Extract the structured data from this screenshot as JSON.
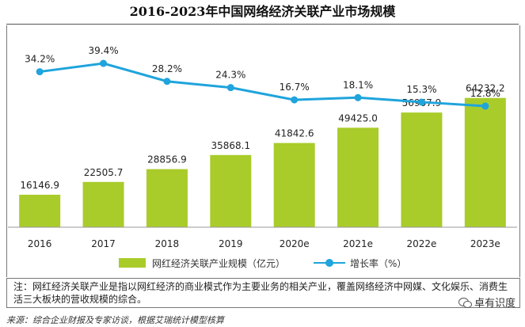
{
  "title": "2016-2023年中国网络经济关联产业市场规模",
  "chart_data": {
    "type": "bar+line",
    "categories": [
      "2016",
      "2017",
      "2018",
      "2019",
      "2020e",
      "2021e",
      "2022e",
      "2023e"
    ],
    "series": [
      {
        "name": "网红经济关联产业规模（亿元）",
        "type": "bar",
        "values": [
          16146.9,
          22505.7,
          28856.9,
          35868.1,
          41842.6,
          49425.0,
          56967.9,
          64232.2
        ],
        "labels": [
          "16146.9",
          "22505.7",
          "28856.9",
          "35868.1",
          "41842.6",
          "49425.0",
          "56967.9",
          "64232.2"
        ],
        "color": "#a9cc2a"
      },
      {
        "name": "增长率（%）",
        "type": "line",
        "values": [
          34.2,
          39.4,
          28.2,
          24.3,
          16.7,
          18.1,
          15.3,
          12.8
        ],
        "labels": [
          "34.2%",
          "39.4%",
          "28.2%",
          "24.3%",
          "16.7%",
          "18.1%",
          "15.3%",
          "12.8%"
        ],
        "color": "#1fa4dc"
      }
    ],
    "legend": {
      "bar_label": "网红经济关联产业规模（亿元）",
      "line_label": "增长率（%）",
      "position": "bottom"
    },
    "grid": false
  },
  "note": "注：网红经济关联产业是指以网红经济的商业模式作为主要业务的相关产业，覆盖网络经济中网媒、文化娱乐、消费生活三大板块的营收规模的综合。",
  "source": "来源：综合企业财报及专家访谈，根据艾瑞统计模型核算",
  "watermark": "卓有识度"
}
